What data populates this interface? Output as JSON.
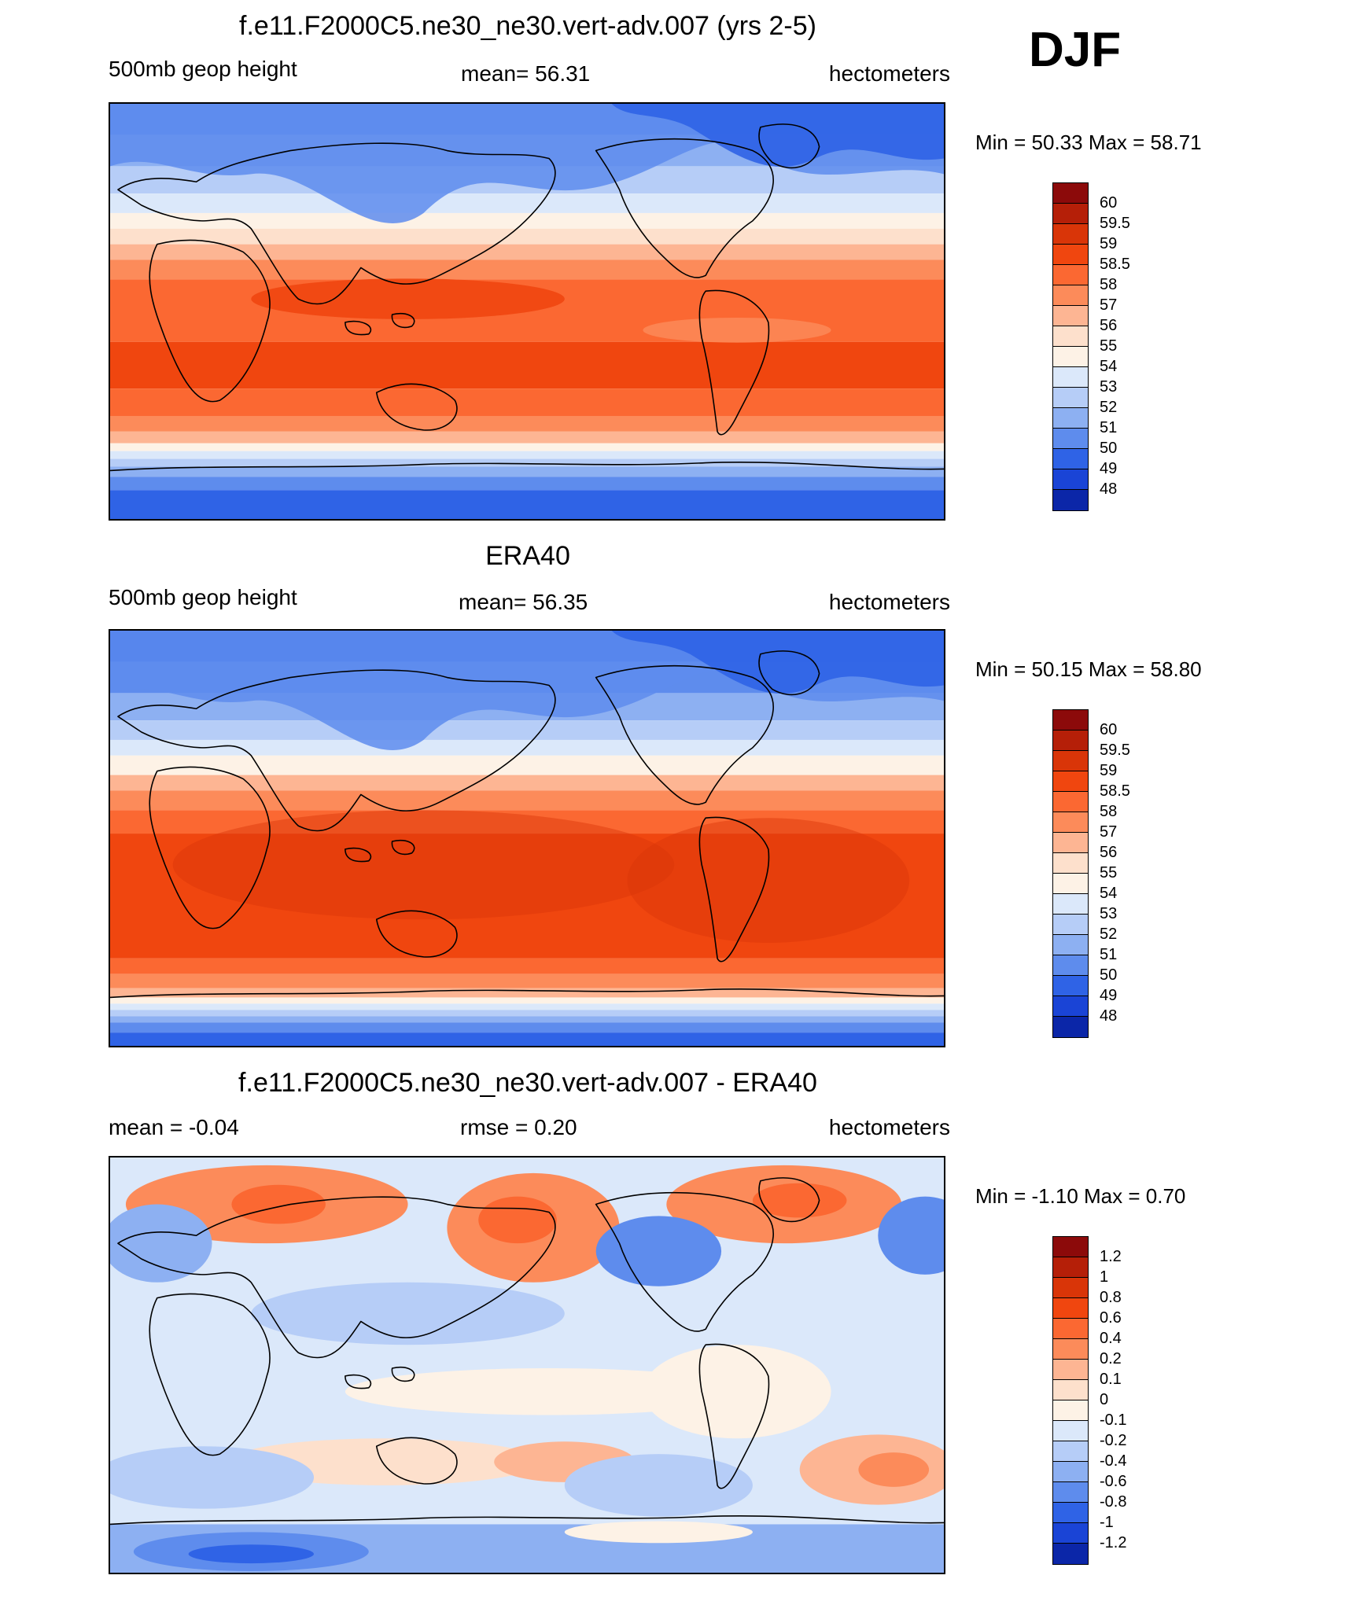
{
  "header": {
    "season": "DJF"
  },
  "panels": [
    {
      "id": "model",
      "title": "f.e11.F2000C5.ne30_ne30.vert-adv.007 (yrs 2-5)",
      "left_label": "500mb geop height",
      "center_label": "mean=  56.31",
      "right_label": "hectometers",
      "minmax": "Min =  50.33 Max =  58.71",
      "style": "field"
    },
    {
      "id": "obs",
      "title": "ERA40",
      "left_label": "500mb geop height",
      "center_label": "mean=  56.35",
      "right_label": "hectometers",
      "minmax": "Min =  50.15 Max =  58.80",
      "style": "field"
    },
    {
      "id": "diff",
      "title": "f.e11.F2000C5.ne30_ne30.vert-adv.007 - ERA40",
      "left_label": "mean =  -0.04",
      "center_label": "rmse =   0.20",
      "right_label": "hectometers",
      "minmax": "Min =  -1.10 Max =   0.70",
      "style": "diff"
    }
  ],
  "colorbars": {
    "field": {
      "labels": [
        "60",
        "59.5",
        "59",
        "58.5",
        "58",
        "57",
        "56",
        "55",
        "54",
        "53",
        "52",
        "51",
        "50",
        "49",
        "48"
      ],
      "colors": [
        "#8c0a0a",
        "#b51f08",
        "#d93508",
        "#f0460f",
        "#fb6832",
        "#fc8b5a",
        "#fdb593",
        "#fde0cc",
        "#fdf2e6",
        "#dbe8fa",
        "#b6cdf7",
        "#8db0f2",
        "#5e8ced",
        "#2f63e6",
        "#1a44d6",
        "#0b26a8"
      ]
    },
    "diff": {
      "labels": [
        "1.2",
        "1",
        "0.8",
        "0.6",
        "0.4",
        "0.2",
        "0.1",
        "0",
        "-0.1",
        "-0.2",
        "-0.4",
        "-0.6",
        "-0.8",
        "-1",
        "-1.2"
      ],
      "colors": [
        "#8c0a0a",
        "#b51f08",
        "#d93508",
        "#f0460f",
        "#fb6832",
        "#fc8b5a",
        "#fdb593",
        "#fde0cc",
        "#fdf2e6",
        "#dbe8fa",
        "#b6cdf7",
        "#8db0f2",
        "#5e8ced",
        "#2f63e6",
        "#1a44d6",
        "#0b26a8"
      ]
    }
  }
}
